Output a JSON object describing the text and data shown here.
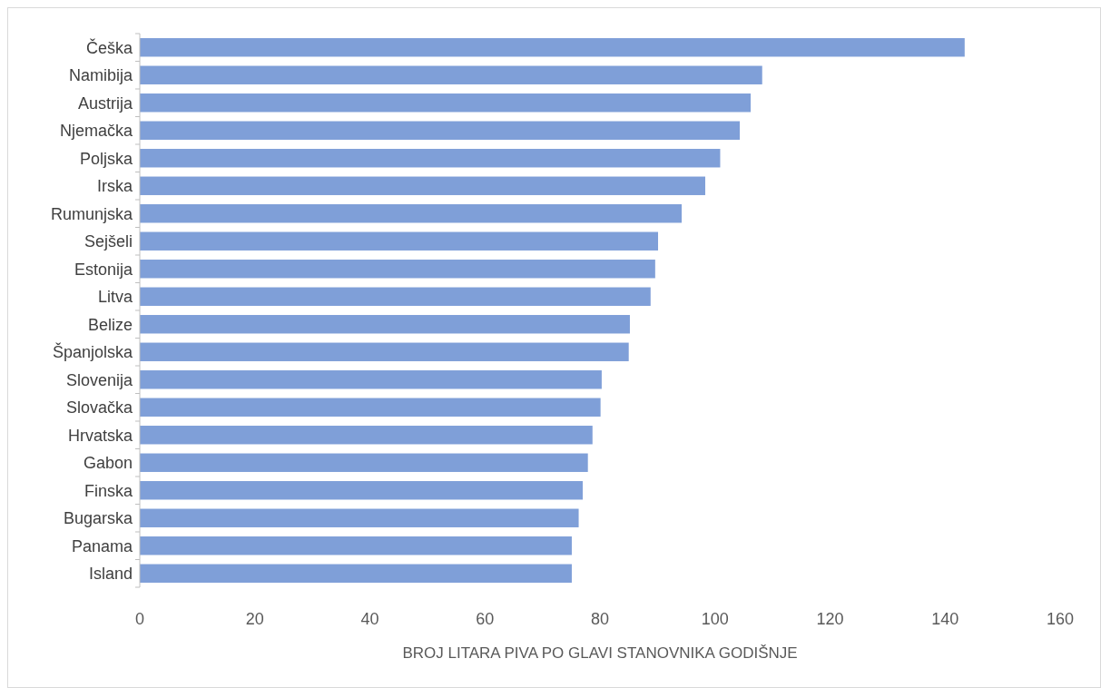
{
  "chart_data": {
    "type": "bar",
    "orientation": "horizontal",
    "xlabel": "BROJ LITARA PIVA PO GLAVI STANOVNIKA GODIŠNJE",
    "categories": [
      "Češka",
      "Namibija",
      "Austrija",
      "Njemačka",
      "Poljska",
      "Irska",
      "Rumunjska",
      "Sejšeli",
      "Estonija",
      "Litva",
      "Belize",
      "Španjolska",
      "Slovenija",
      "Slovačka",
      "Hrvatska",
      "Gabon",
      "Finska",
      "Bugarska",
      "Panama",
      "Island"
    ],
    "values": [
      143.4,
      108.2,
      106.2,
      104.3,
      100.9,
      98.3,
      94.2,
      90.1,
      89.6,
      88.8,
      85.2,
      85.0,
      80.3,
      80.1,
      78.7,
      77.9,
      77.0,
      76.3,
      75.1,
      75.1
    ],
    "color": "#7f9fd8",
    "xlim": [
      0,
      160
    ],
    "xticks": [
      0,
      20,
      40,
      60,
      80,
      100,
      120,
      140,
      160
    ],
    "grid": false
  }
}
